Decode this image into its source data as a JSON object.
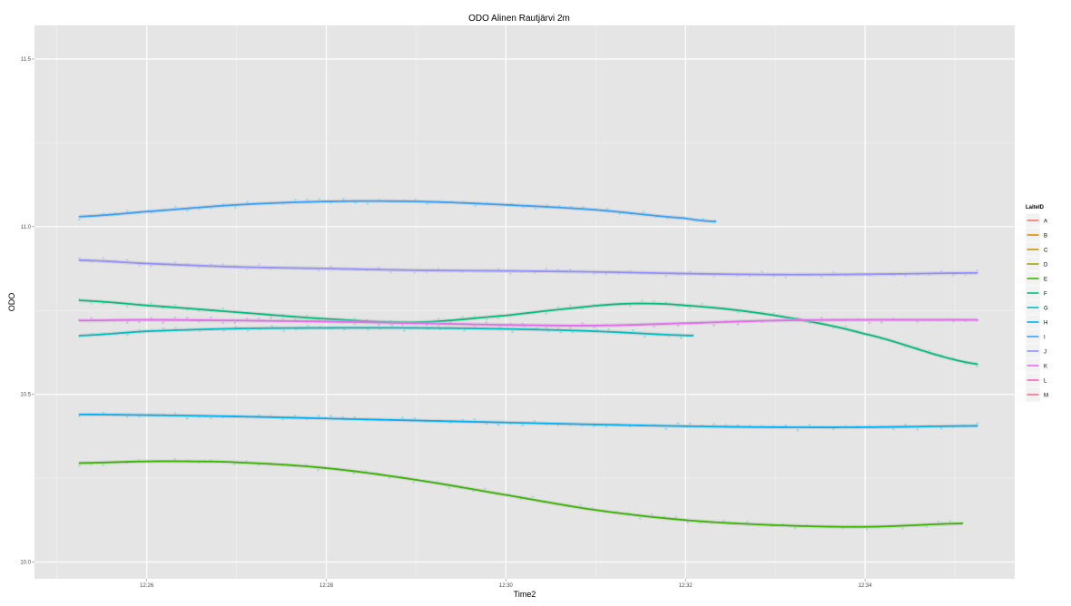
{
  "chart_data": {
    "type": "line",
    "title": "ODO Alinen Rautjärvi 2m",
    "xlabel": "Time2",
    "ylabel": "ODO",
    "x_unit": "time HH:MM",
    "xlim": [
      "12:24:45",
      "12:35:40"
    ],
    "ylim": [
      9.95,
      11.6
    ],
    "x_ticks": [
      "12:26",
      "12:28",
      "12:30",
      "12:32",
      "12:34"
    ],
    "y_ticks": [
      "10.0",
      "10.5",
      "11.0",
      "11.5"
    ],
    "grid": true,
    "legend": {
      "title": "LaiteID",
      "position": "right",
      "entries": [
        {
          "label": "A",
          "color": "#F8766D"
        },
        {
          "label": "B",
          "color": "#E58700"
        },
        {
          "label": "C",
          "color": "#C99800"
        },
        {
          "label": "D",
          "color": "#A3A500"
        },
        {
          "label": "E",
          "color": "#39B600"
        },
        {
          "label": "F",
          "color": "#00BF7D"
        },
        {
          "label": "G",
          "color": "#00BFC4"
        },
        {
          "label": "H",
          "color": "#00B0F6"
        },
        {
          "label": "I",
          "color": "#35A2FF"
        },
        {
          "label": "J",
          "color": "#9590FF"
        },
        {
          "label": "K",
          "color": "#E76BF3"
        },
        {
          "label": "L",
          "color": "#FF62BC"
        },
        {
          "label": "M",
          "color": "#FF6C91"
        }
      ]
    },
    "series": [
      {
        "name": "I",
        "color": "#35A2FF",
        "point_color": "#8fdcf0",
        "x": [
          "12:25:15",
          "12:26:00",
          "12:27:00",
          "12:28:00",
          "12:29:00",
          "12:30:00",
          "12:31:00",
          "12:32:00",
          "12:32:20"
        ],
        "y": [
          11.03,
          11.045,
          11.065,
          11.075,
          11.075,
          11.065,
          11.05,
          11.025,
          11.015
        ]
      },
      {
        "name": "J",
        "color": "#9590FF",
        "point_color": "#c5c5f8",
        "x": [
          "12:25:15",
          "12:26:00",
          "12:27:00",
          "12:28:00",
          "12:29:00",
          "12:30:00",
          "12:31:00",
          "12:32:00",
          "12:33:00",
          "12:34:00",
          "12:35:15"
        ],
        "y": [
          10.9,
          10.89,
          10.88,
          10.875,
          10.87,
          10.868,
          10.865,
          10.86,
          10.857,
          10.858,
          10.862
        ]
      },
      {
        "name": "F",
        "color": "#00BF7D",
        "point_color": "#9ce4c4",
        "x": [
          "12:25:15",
          "12:26:00",
          "12:27:00",
          "12:28:00",
          "12:29:00",
          "12:30:00",
          "12:30:40",
          "12:31:20",
          "12:32:00",
          "12:33:00",
          "12:34:00",
          "12:35:15"
        ],
        "y": [
          10.78,
          10.765,
          10.745,
          10.725,
          10.715,
          10.735,
          10.755,
          10.77,
          10.765,
          10.735,
          10.68,
          10.59
        ]
      },
      {
        "name": "K",
        "color": "#E76BF3",
        "point_color": "#e5a8ec",
        "x": [
          "12:25:15",
          "12:26:00",
          "12:27:00",
          "12:28:00",
          "12:29:00",
          "12:30:00",
          "12:31:00",
          "12:32:00",
          "12:33:00",
          "12:34:00",
          "12:35:15"
        ],
        "y": [
          10.72,
          10.722,
          10.72,
          10.717,
          10.712,
          10.707,
          10.705,
          10.712,
          10.72,
          10.722,
          10.722
        ]
      },
      {
        "name": "G",
        "color": "#00BFC4",
        "point_color": "#8ee0cf",
        "x": [
          "12:25:15",
          "12:26:00",
          "12:27:00",
          "12:28:00",
          "12:29:00",
          "12:30:00",
          "12:31:00",
          "12:32:05"
        ],
        "y": [
          10.675,
          10.688,
          10.696,
          10.698,
          10.698,
          10.695,
          10.688,
          10.675
        ]
      },
      {
        "name": "H",
        "color": "#00B0F6",
        "point_color": "#8ad8ef",
        "x": [
          "12:25:15",
          "12:26:00",
          "12:27:00",
          "12:28:00",
          "12:29:00",
          "12:30:00",
          "12:31:00",
          "12:32:00",
          "12:33:00",
          "12:34:00",
          "12:35:15"
        ],
        "y": [
          10.44,
          10.438,
          10.434,
          10.428,
          10.422,
          10.416,
          10.41,
          10.405,
          10.402,
          10.402,
          10.406
        ]
      },
      {
        "name": "E",
        "color": "#39B600",
        "point_color": "#a6dcc4",
        "x": [
          "12:25:15",
          "12:26:00",
          "12:26:30",
          "12:27:00",
          "12:28:00",
          "12:29:00",
          "12:30:00",
          "12:31:00",
          "12:32:00",
          "12:33:00",
          "12:34:00",
          "12:35:05"
        ],
        "y": [
          10.295,
          10.3,
          10.3,
          10.297,
          10.28,
          10.245,
          10.2,
          10.155,
          10.125,
          10.11,
          10.105,
          10.115
        ]
      }
    ]
  }
}
